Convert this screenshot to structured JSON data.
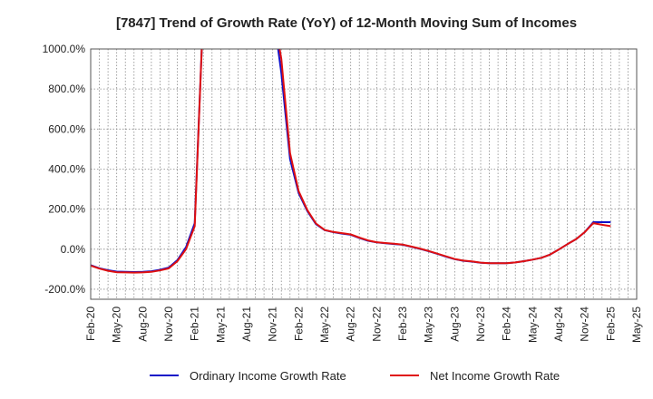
{
  "chart_data": {
    "type": "line",
    "title": "[7847]  Trend of Growth Rate (YoY) of 12-Month Moving Sum of Incomes",
    "ylim": [
      -250,
      1000
    ],
    "y_ticks": [
      1000,
      800,
      600,
      400,
      200,
      0,
      -200
    ],
    "y_tick_labels": [
      "1000.0%",
      "800.0%",
      "600.0%",
      "400.0%",
      "200.0%",
      "0.0%",
      "-200.0%"
    ],
    "x_range": [
      "2020-02",
      "2025-05"
    ],
    "x_ticks": [
      "2020-02",
      "2020-05",
      "2020-08",
      "2020-11",
      "2021-02",
      "2021-05",
      "2021-08",
      "2021-11",
      "2022-02",
      "2022-05",
      "2022-08",
      "2022-11",
      "2023-02",
      "2023-05",
      "2023-08",
      "2023-11",
      "2024-02",
      "2024-05",
      "2024-08",
      "2024-11",
      "2025-02",
      "2025-05"
    ],
    "x_tick_labels": [
      "Feb-20",
      "May-20",
      "Aug-20",
      "Nov-20",
      "Feb-21",
      "May-21",
      "Aug-21",
      "Nov-21",
      "Feb-22",
      "May-22",
      "Aug-22",
      "Nov-22",
      "Feb-23",
      "May-23",
      "Aug-23",
      "Nov-23",
      "Feb-24",
      "May-24",
      "Aug-24",
      "Nov-24",
      "Feb-25",
      "May-25"
    ],
    "grid": true,
    "legend_position": "bottom",
    "series": [
      {
        "name": "Ordinary Income Growth Rate",
        "color": "#1010c8",
        "x": [
          "2020-02",
          "2020-03",
          "2020-04",
          "2020-05",
          "2020-06",
          "2020-07",
          "2020-08",
          "2020-09",
          "2020-10",
          "2020-11",
          "2020-12",
          "2021-01",
          "2021-02",
          "2021-03",
          "2021-04",
          "2021-05",
          "2021-06",
          "2021-07",
          "2021-08",
          "2021-09",
          "2021-10",
          "2021-11",
          "2021-12",
          "2022-01",
          "2022-02",
          "2022-03",
          "2022-04",
          "2022-05",
          "2022-06",
          "2022-07",
          "2022-08",
          "2022-09",
          "2022-10",
          "2022-11",
          "2022-12",
          "2023-01",
          "2023-02",
          "2023-03",
          "2023-04",
          "2023-05",
          "2023-06",
          "2023-07",
          "2023-08",
          "2023-09",
          "2023-10",
          "2023-11",
          "2023-12",
          "2024-01",
          "2024-02",
          "2024-03",
          "2024-04",
          "2024-05",
          "2024-06",
          "2024-07",
          "2024-08",
          "2024-09",
          "2024-10",
          "2024-11",
          "2024-12",
          "2025-01",
          "2025-02"
        ],
        "values": [
          -80,
          -95,
          -105,
          -112,
          -113,
          -114,
          -113,
          -110,
          -103,
          -92,
          -55,
          10,
          130,
          1200,
          null,
          null,
          null,
          null,
          null,
          null,
          null,
          1200,
          880,
          450,
          280,
          190,
          125,
          95,
          85,
          78,
          72,
          56,
          42,
          34,
          30,
          26,
          22,
          12,
          2,
          -10,
          -23,
          -37,
          -50,
          -58,
          -62,
          -68,
          -70,
          -70,
          -70,
          -66,
          -60,
          -52,
          -43,
          -27,
          -2,
          25,
          50,
          85,
          135,
          135,
          135
        ]
      },
      {
        "name": "Net Income Growth Rate",
        "color": "#e01010",
        "x": [
          "2020-02",
          "2020-03",
          "2020-04",
          "2020-05",
          "2020-06",
          "2020-07",
          "2020-08",
          "2020-09",
          "2020-10",
          "2020-11",
          "2020-12",
          "2021-01",
          "2021-02",
          "2021-03",
          "2021-04",
          "2021-05",
          "2021-06",
          "2021-07",
          "2021-08",
          "2021-09",
          "2021-10",
          "2021-11",
          "2021-12",
          "2022-01",
          "2022-02",
          "2022-03",
          "2022-04",
          "2022-05",
          "2022-06",
          "2022-07",
          "2022-08",
          "2022-09",
          "2022-10",
          "2022-11",
          "2022-12",
          "2023-01",
          "2023-02",
          "2023-03",
          "2023-04",
          "2023-05",
          "2023-06",
          "2023-07",
          "2023-08",
          "2023-09",
          "2023-10",
          "2023-11",
          "2023-12",
          "2024-01",
          "2024-02",
          "2024-03",
          "2024-04",
          "2024-05",
          "2024-06",
          "2024-07",
          "2024-08",
          "2024-09",
          "2024-10",
          "2024-11",
          "2024-12",
          "2025-01",
          "2025-02"
        ],
        "values": [
          -82,
          -97,
          -108,
          -115,
          -116,
          -117,
          -116,
          -113,
          -106,
          -96,
          -60,
          0,
          115,
          1200,
          null,
          null,
          null,
          null,
          null,
          null,
          null,
          1200,
          950,
          480,
          290,
          195,
          128,
          96,
          86,
          80,
          74,
          58,
          44,
          35,
          31,
          27,
          23,
          13,
          3,
          -9,
          -22,
          -36,
          -49,
          -57,
          -61,
          -67,
          -70,
          -70,
          -70,
          -66,
          -60,
          -52,
          -43,
          -27,
          -2,
          25,
          50,
          85,
          130,
          122,
          115
        ]
      }
    ]
  }
}
